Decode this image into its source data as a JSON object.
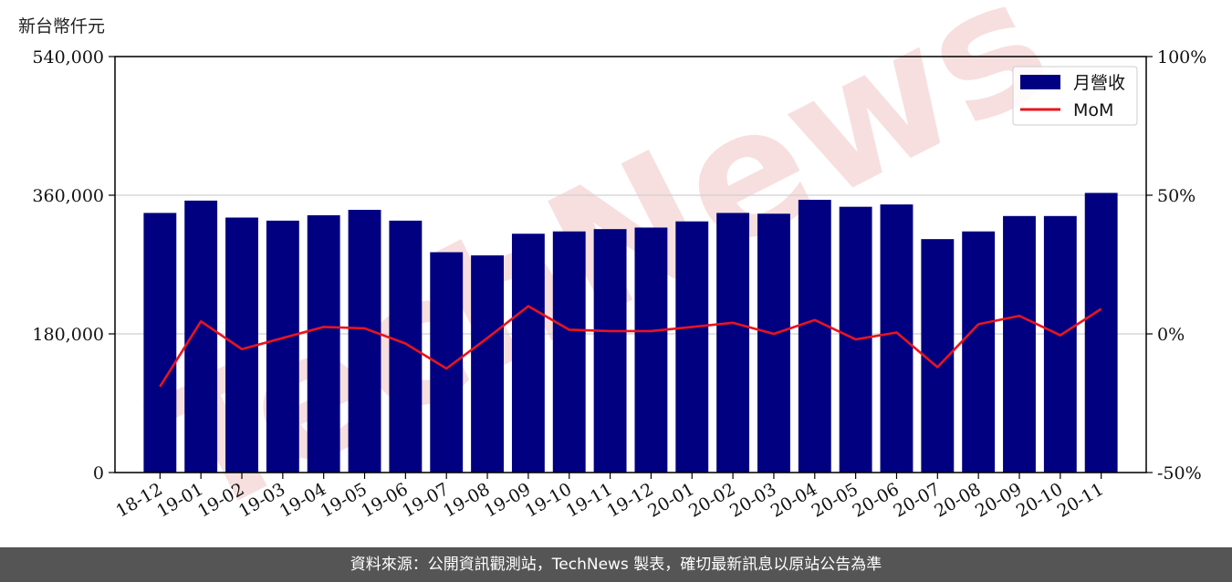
{
  "header": {
    "unit_label": "新台幣仟元"
  },
  "footer": {
    "text": "資料來源：公開資訊觀測站，TechNews 製表，確切最新訊息以原站公告為準"
  },
  "watermark": {
    "text": "TechNews",
    "color": "#f2c6c6"
  },
  "colors": {
    "bar": "#000080",
    "line": "#e8141e",
    "grid": "#d0d0d0",
    "axis": "#000000"
  },
  "chart_data": {
    "type": "bar",
    "categories": [
      "18-12",
      "19-01",
      "19-02",
      "19-03",
      "19-04",
      "19-05",
      "19-06",
      "19-07",
      "19-08",
      "19-09",
      "19-10",
      "19-11",
      "19-12",
      "20-01",
      "20-02",
      "20-03",
      "20-04",
      "20-05",
      "20-06",
      "20-07",
      "20-08",
      "20-09",
      "20-10",
      "20-11"
    ],
    "series": [
      {
        "name": "月營收",
        "type": "bar",
        "axis": "left",
        "values": [
          337000,
          353000,
          331000,
          327000,
          334000,
          341000,
          327000,
          286000,
          282000,
          310000,
          313000,
          316000,
          318000,
          326000,
          337000,
          336000,
          354000,
          345000,
          348000,
          303000,
          313000,
          333000,
          333000,
          363000
        ]
      },
      {
        "name": "MoM",
        "type": "line",
        "axis": "right",
        "values": [
          -19.0,
          4.5,
          -5.5,
          -1.5,
          2.5,
          2.0,
          -3.5,
          -12.5,
          -1.5,
          10.0,
          1.5,
          1.0,
          1.0,
          2.5,
          4.0,
          0.0,
          5.0,
          -2.0,
          0.5,
          -12.0,
          3.5,
          6.5,
          -0.5,
          9.0
        ]
      }
    ],
    "y_left": {
      "ylim": [
        0,
        540000
      ],
      "ticks": [
        "0",
        "180,000",
        "360,000",
        "540,000"
      ],
      "tick_values": [
        0,
        180000,
        360000,
        540000
      ]
    },
    "y_right": {
      "ylim": [
        -50,
        100
      ],
      "ticks": [
        "-50%",
        "0%",
        "50%",
        "100%"
      ],
      "tick_values": [
        -50,
        0,
        50,
        100
      ]
    },
    "grid": "horizontal",
    "legend": "top-right"
  }
}
